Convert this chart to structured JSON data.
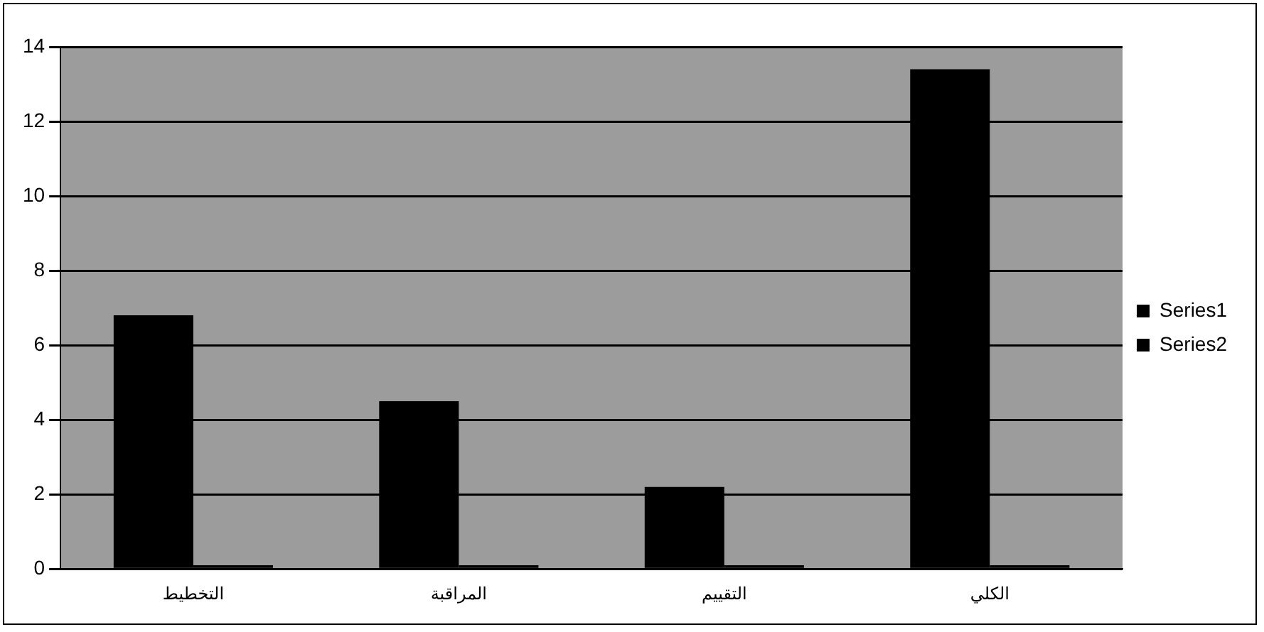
{
  "chart_data": {
    "type": "bar",
    "categories": [
      "التخطيط",
      "المراقبة",
      "التقييم",
      "الكلي"
    ],
    "series": [
      {
        "name": "Series1",
        "color": "#000000",
        "values": [
          6.8,
          4.5,
          2.2,
          13.4
        ]
      },
      {
        "name": "Series2",
        "color": "#000000",
        "values": [
          0.1,
          0.1,
          0.1,
          0.1
        ]
      }
    ],
    "ylim": [
      0,
      14
    ],
    "yticks": [
      0,
      2,
      4,
      6,
      8,
      10,
      12,
      14
    ],
    "grid": "y",
    "legend": "right"
  }
}
